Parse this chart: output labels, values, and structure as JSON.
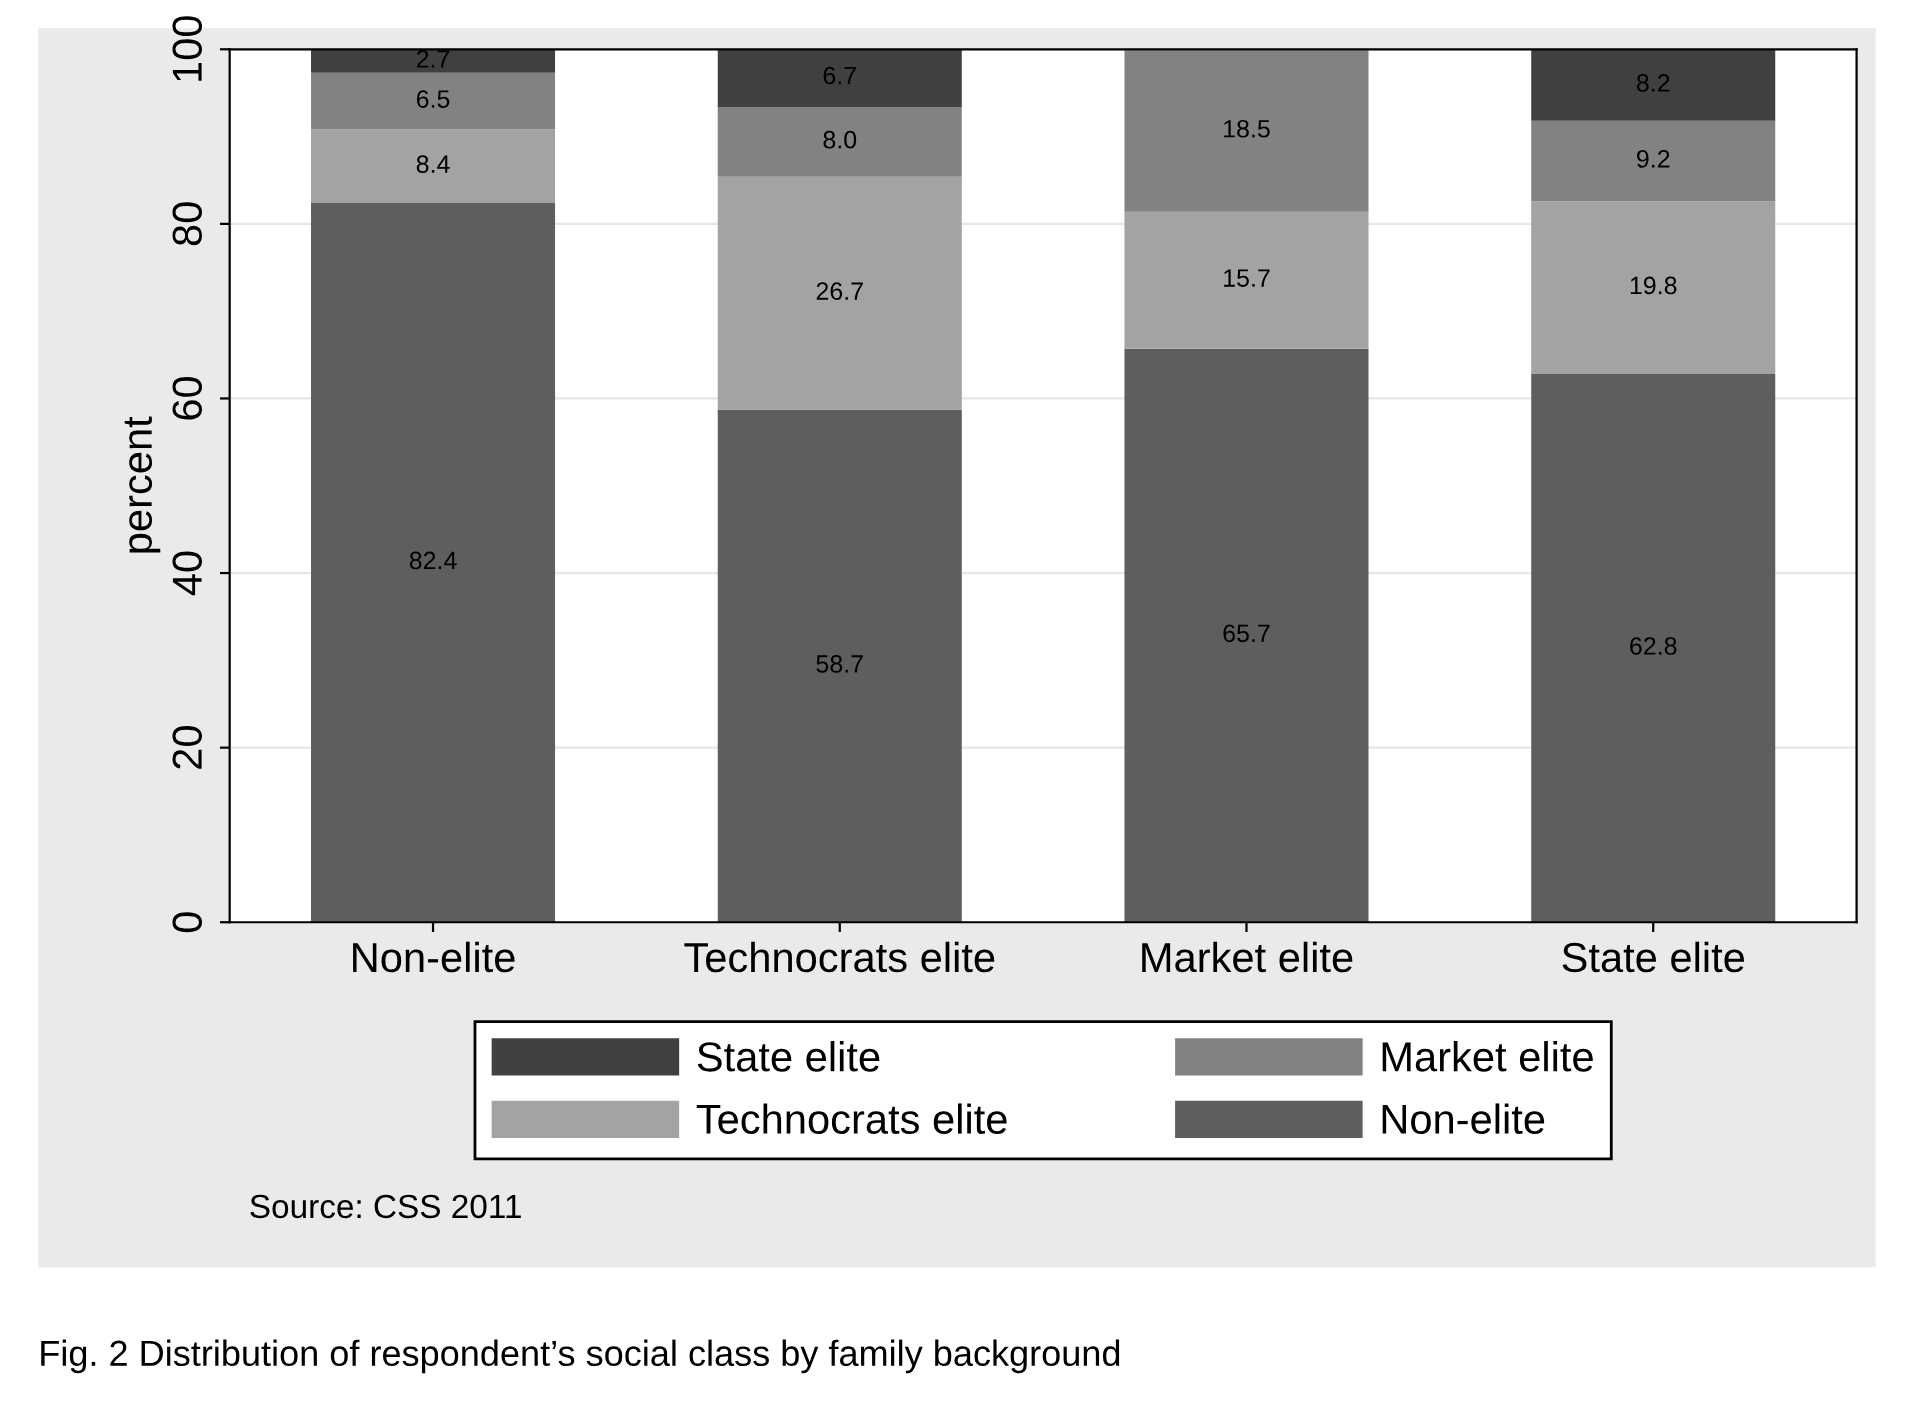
{
  "chart_data": {
    "type": "bar",
    "stacked": true,
    "ylabel": "percent",
    "categories": [
      "Non-elite",
      "Technocrats elite",
      "Market elite",
      "State elite"
    ],
    "series": [
      {
        "name": "Non-elite",
        "color": "#5e5e5e",
        "values": [
          82.4,
          58.7,
          65.7,
          62.8
        ],
        "value_labels": [
          "82.4",
          "58.7",
          "65.7",
          "62.8"
        ]
      },
      {
        "name": "Technocrats elite",
        "color": "#a3a3a3",
        "values": [
          8.4,
          26.7,
          15.7,
          19.8
        ],
        "value_labels": [
          "8.4",
          "26.7",
          "15.7",
          "19.8"
        ]
      },
      {
        "name": "Market elite",
        "color": "#828282",
        "values": [
          6.5,
          8.0,
          18.5,
          9.2
        ],
        "value_labels": [
          "6.5",
          "8.0",
          "18.5",
          "9.2"
        ]
      },
      {
        "name": "State elite",
        "color": "#404040",
        "values": [
          2.7,
          6.7,
          null,
          8.2
        ],
        "value_labels": [
          "2.7",
          "6.7",
          null,
          "8.2"
        ]
      }
    ],
    "ylim": [
      0,
      100
    ],
    "yticks": [
      0,
      20,
      40,
      60,
      80,
      100
    ],
    "grid": "y",
    "legend": "bottom",
    "annotations": [
      "Source: CSS 2011",
      "Fig. 2 Distribution of respondent’s social class by family background"
    ]
  }
}
